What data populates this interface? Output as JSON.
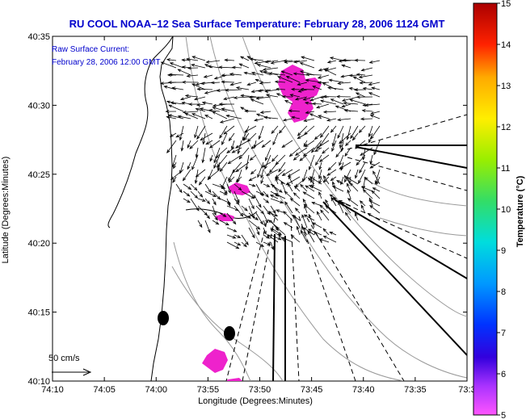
{
  "chart_data": {
    "type": "map",
    "title": "RU COOL  NOAA–12  Sea Surface Temperature:  February 28, 2006 1124 GMT",
    "annotation_lines": [
      "Raw Surface Current:",
      "February 28, 2006 12:00 GMT"
    ],
    "scale_label": "50 cm/s",
    "xlabel": "Longitude (Degrees:Minutes)",
    "ylabel": "Latitude (Degrees:Minutes)",
    "x_ticks": [
      "74:10",
      "74:05",
      "74:00",
      "73:55",
      "73:50",
      "73:45",
      "73:40",
      "73:35",
      "73:3"
    ],
    "y_ticks": [
      "40:35",
      "40:30",
      "40:25",
      "40:20",
      "40:15",
      "40:10"
    ],
    "colorbar": {
      "label": "Temperature (°C)",
      "ticks": [
        "15",
        "14",
        "13",
        "12",
        "11",
        "10",
        "9",
        "8",
        "7",
        "6",
        "5"
      ],
      "min": 5,
      "max": 15
    },
    "colors": {
      "title": "#0000cc",
      "sst_patches": "#ff00ff",
      "land": "#ffffff",
      "vectors": "#000000"
    }
  }
}
